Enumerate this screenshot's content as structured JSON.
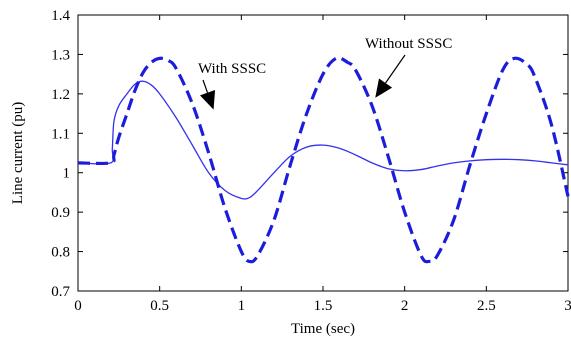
{
  "chart_data": {
    "type": "line",
    "title": "",
    "xlabel": "Time (sec)",
    "ylabel": "Line current  (pu)",
    "xlim": [
      0,
      3
    ],
    "ylim": [
      0.7,
      1.4
    ],
    "xticks": [
      "0",
      "0.5",
      "1",
      "1.5",
      "2",
      "2.5",
      "3"
    ],
    "yticks": [
      "0.7",
      "0.8",
      "0.9",
      "1",
      "1.1",
      "1.2",
      "1.3",
      "1.4"
    ],
    "grid": false,
    "legend": "none",
    "annotations": [
      {
        "text": "With SSSC",
        "target_series": "With SSSC",
        "point_at": [
          0.83,
          1.16
        ]
      },
      {
        "text": "Without SSSC",
        "target_series": "Without SSSC",
        "point_at": [
          1.82,
          1.19
        ]
      }
    ],
    "series": [
      {
        "name": "With SSSC",
        "style": "solid",
        "color": "#3333ee",
        "x": [
          0,
          0.2,
          0.21,
          0.22,
          0.25,
          0.3,
          0.35,
          0.4,
          0.45,
          0.5,
          0.6,
          0.7,
          0.8,
          0.9,
          1.0,
          1.05,
          1.1,
          1.2,
          1.3,
          1.4,
          1.5,
          1.6,
          1.7,
          1.8,
          1.9,
          2.0,
          2.1,
          2.2,
          2.3,
          2.4,
          2.5,
          2.6,
          2.7,
          2.8,
          2.9,
          3.0
        ],
        "y": [
          1.025,
          1.025,
          1.06,
          1.13,
          1.17,
          1.2,
          1.225,
          1.232,
          1.222,
          1.2,
          1.14,
          1.07,
          1.0,
          0.955,
          0.935,
          0.937,
          0.955,
          1.0,
          1.042,
          1.065,
          1.07,
          1.062,
          1.045,
          1.025,
          1.01,
          1.005,
          1.008,
          1.017,
          1.025,
          1.03,
          1.033,
          1.034,
          1.033,
          1.03,
          1.025,
          1.02
        ]
      },
      {
        "name": "Without SSSC",
        "style": "dashed",
        "color": "#1c1cdc",
        "x": [
          0,
          0.2,
          0.22,
          0.25,
          0.3,
          0.35,
          0.4,
          0.45,
          0.5,
          0.55,
          0.6,
          0.7,
          0.8,
          0.9,
          1.0,
          1.05,
          1.1,
          1.2,
          1.3,
          1.4,
          1.5,
          1.58,
          1.65,
          1.7,
          1.8,
          1.9,
          2.0,
          2.1,
          2.15,
          2.2,
          2.3,
          2.4,
          2.5,
          2.6,
          2.67,
          2.75,
          2.8,
          2.9,
          3.0
        ],
        "y": [
          1.025,
          1.025,
          1.045,
          1.09,
          1.15,
          1.21,
          1.255,
          1.28,
          1.29,
          1.285,
          1.265,
          1.175,
          1.05,
          0.91,
          0.8,
          0.775,
          0.79,
          0.88,
          1.02,
          1.15,
          1.25,
          1.29,
          1.28,
          1.26,
          1.17,
          1.04,
          0.9,
          0.79,
          0.775,
          0.79,
          0.88,
          1.02,
          1.15,
          1.26,
          1.29,
          1.275,
          1.24,
          1.12,
          0.94
        ]
      }
    ]
  }
}
